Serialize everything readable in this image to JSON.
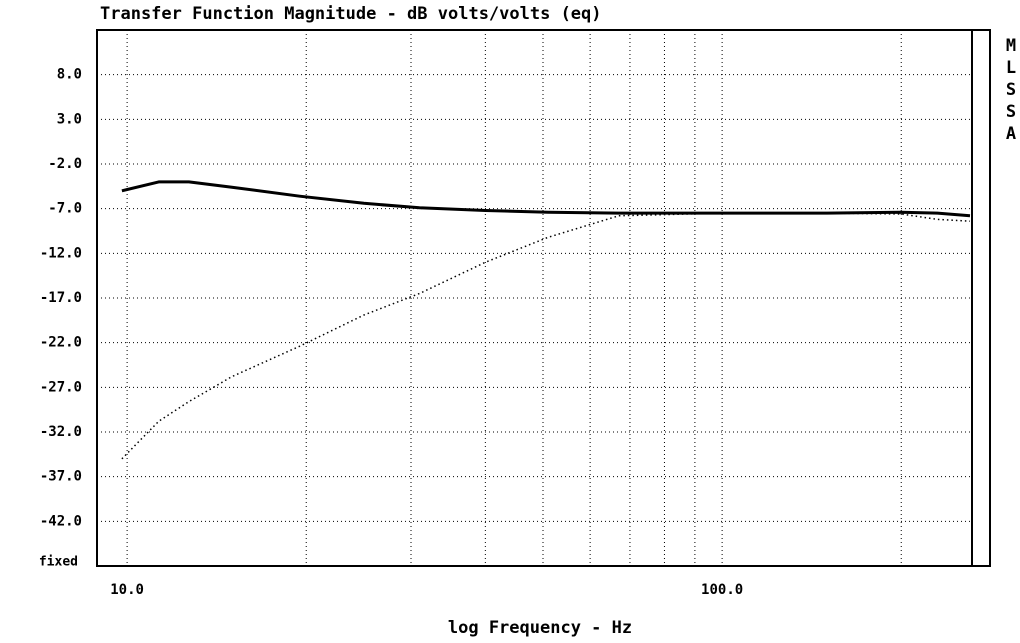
{
  "chart_data": {
    "type": "line",
    "title": "Transfer Function Magnitude - dB volts/volts (eq)",
    "x_label": "log Frequency - Hz",
    "side_label": "MLSSA",
    "y_axis_note": "fixed",
    "x_log": true,
    "grid": true,
    "xlim": [
      8.9,
      263
    ],
    "ylim": [
      -47,
      13
    ],
    "xticks": [
      {
        "value": 10,
        "label": "10.0"
      },
      {
        "value": 100,
        "label": "100.0"
      }
    ],
    "x_minor_grid": [
      20,
      30,
      40,
      50,
      60,
      70,
      80,
      90,
      200
    ],
    "yticks": [
      {
        "value": 8,
        "label": "8.0"
      },
      {
        "value": 3,
        "label": "3.0"
      },
      {
        "value": -2,
        "label": "-2.0"
      },
      {
        "value": -7,
        "label": "-7.0"
      },
      {
        "value": -12,
        "label": "-12.0"
      },
      {
        "value": -17,
        "label": "-17.0"
      },
      {
        "value": -22,
        "label": "-22.0"
      },
      {
        "value": -27,
        "label": "-27.0"
      },
      {
        "value": -32,
        "label": "-32.0"
      },
      {
        "value": -37,
        "label": "-37.0"
      },
      {
        "value": -42,
        "label": "-42.0"
      }
    ],
    "x": [
      9.8,
      11.3,
      12.7,
      15,
      19.5,
      25,
      31,
      40,
      51,
      67,
      100,
      150,
      200,
      230,
      261
    ],
    "series": [
      {
        "color": "#000000",
        "style": "solid",
        "values": [
          -5.0,
          -4.0,
          -4.0,
          -4.6,
          -5.6,
          -6.4,
          -6.9,
          -7.2,
          -7.4,
          -7.5,
          -7.5,
          -7.5,
          -7.4,
          -7.5,
          -7.8
        ]
      },
      {
        "color": "#000000",
        "style": "dotted",
        "values": [
          -35.0,
          -30.8,
          -28.6,
          -25.8,
          -22.4,
          -18.9,
          -16.5,
          -13.0,
          -10.2,
          -7.8,
          -7.5,
          -7.5,
          -7.6,
          -8.2,
          -8.4
        ]
      }
    ]
  }
}
